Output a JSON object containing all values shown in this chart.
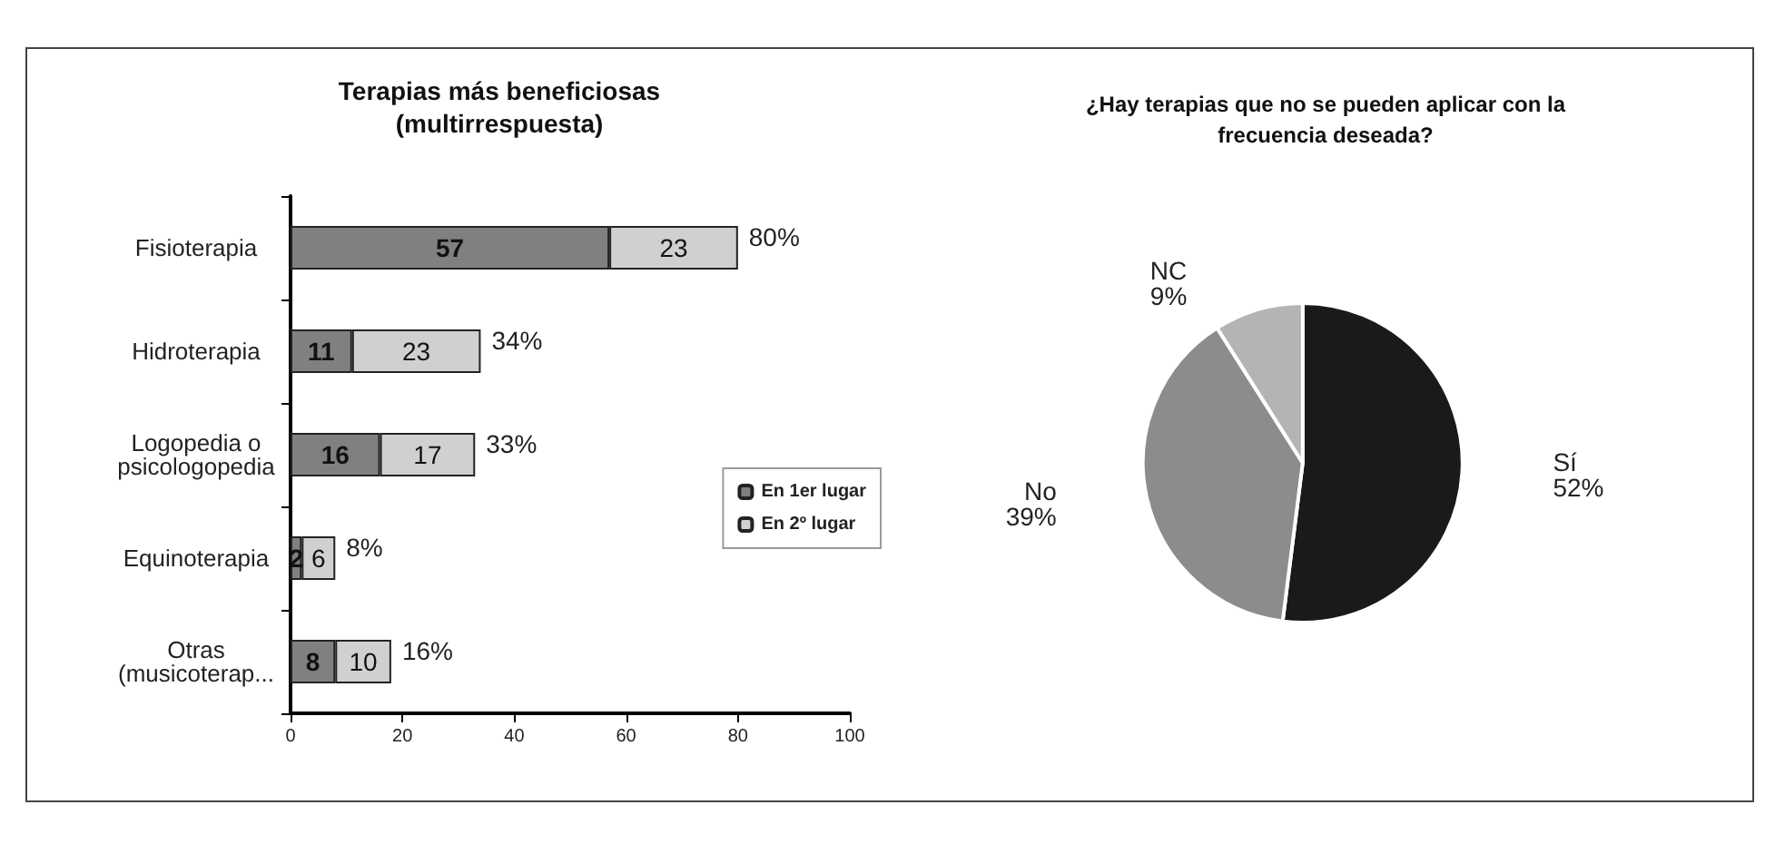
{
  "chart_data": [
    {
      "type": "bar",
      "title": "Terapias más beneficiosas\n(multirrespuesta)",
      "orientation": "horizontal",
      "stacked": true,
      "categories": [
        "Fisioterapia",
        "Hidroterapia",
        "Logopedia o\npsicologopedia",
        "Equinoterapia",
        "Otras\n(musicoterap..."
      ],
      "series": [
        {
          "name": "En 1er lugar",
          "color": "#808080",
          "values": [
            57,
            11,
            16,
            2,
            8
          ]
        },
        {
          "name": "En 2º lugar",
          "color": "#d0d0d0",
          "values": [
            23,
            23,
            17,
            6,
            10
          ]
        }
      ],
      "annotations": [
        {
          "text": "80%",
          "x": 80,
          "y": "Fisioterapia"
        },
        {
          "text": "34%",
          "x": 34,
          "y": "Hidroterapia"
        },
        {
          "text": "33%",
          "x": 33,
          "y": "Logopedia o\npsicologopedia"
        },
        {
          "text": "8%",
          "x": 8,
          "y": "Equinoterapia"
        },
        {
          "text": "16%",
          "x": 18,
          "y": "Otras\n(musicoterap..."
        }
      ],
      "data_labels": true,
      "xlim": [
        0,
        100
      ],
      "xticks": [
        0,
        20,
        40,
        60,
        80,
        100
      ],
      "grid": false,
      "legend": "bottom right"
    },
    {
      "type": "pie",
      "title": "¿Hay terapias que no se pueden aplicar con la\nfrecuencia deseada?",
      "categories": [
        "Sí",
        "No",
        "NC"
      ],
      "values": [
        52,
        39,
        9
      ],
      "value_labels": [
        "52%",
        "39%",
        "9%"
      ],
      "colors": [
        "#1a1a1a",
        "#8c8c8c",
        "#b4b4b4"
      ],
      "legend": false
    }
  ]
}
